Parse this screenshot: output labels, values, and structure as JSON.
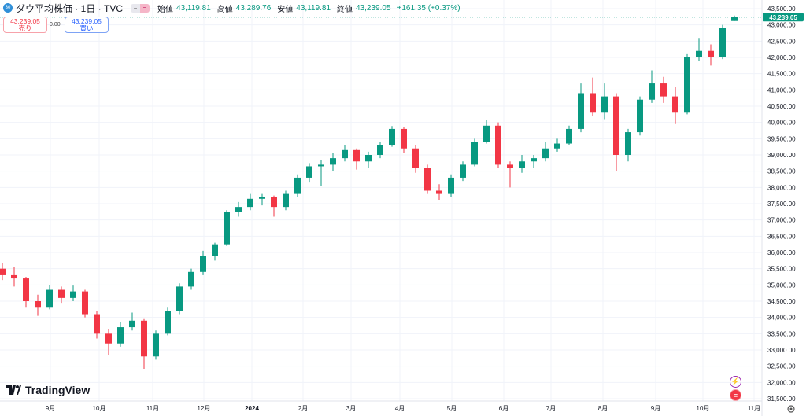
{
  "header": {
    "symbol_badge": "30",
    "title": "ダウ平均株価 · 1日 · TVC",
    "open_label": "始値",
    "open": "43,119.81",
    "high_label": "高値",
    "high": "43,289.76",
    "low_label": "安値",
    "low": "43,119.81",
    "close_label": "終値",
    "close": "43,239.05",
    "change": "+161.35 (+0.37%)"
  },
  "trade": {
    "sell_price": "43,239.05",
    "sell_label": "売り",
    "spread": "0.00",
    "buy_price": "43,239.05",
    "buy_label": "買い"
  },
  "logo": "TradingView",
  "last_price_label": "43,239.05",
  "colors": {
    "up": "#089981",
    "down": "#f23645",
    "grid": "#f0f3fa",
    "last_price": "#089981"
  },
  "icons": [
    "lightning-icon",
    "us-flag-icon",
    "gear-icon"
  ],
  "chart_data": {
    "type": "candlestick",
    "ylim": [
      31500,
      43500
    ],
    "grid": true,
    "y_ticks": [
      "43,500.00",
      "43,000.00",
      "42,500.00",
      "42,000.00",
      "41,500.00",
      "41,000.00",
      "40,500.00",
      "40,000.00",
      "39,500.00",
      "39,000.00",
      "38,500.00",
      "38,000.00",
      "37,500.00",
      "37,000.00",
      "36,500.00",
      "36,000.00",
      "35,500.00",
      "35,000.00",
      "34,500.00",
      "34,000.00",
      "33,500.00",
      "33,000.00",
      "32,500.00",
      "32,000.00",
      "31,500.00"
    ],
    "x_ticks": [
      "9月",
      "10月",
      "11月",
      "12月",
      "2024",
      "2月",
      "3月",
      "4月",
      "5月",
      "6月",
      "7月",
      "8月",
      "9月",
      "10月",
      "11月"
    ],
    "ohlc": [
      [
        35500,
        35680,
        35150,
        35300
      ],
      [
        35300,
        35550,
        34950,
        35200
      ],
      [
        35200,
        35250,
        34300,
        34500
      ],
      [
        34500,
        34700,
        34050,
        34300
      ],
      [
        34300,
        35000,
        34250,
        34850
      ],
      [
        34850,
        34950,
        34450,
        34600
      ],
      [
        34600,
        34980,
        34500,
        34800
      ],
      [
        34800,
        34850,
        34000,
        34100
      ],
      [
        34100,
        34200,
        33350,
        33500
      ],
      [
        33500,
        33650,
        32850,
        33200
      ],
      [
        33200,
        33850,
        33100,
        33700
      ],
      [
        33700,
        34150,
        33600,
        33900
      ],
      [
        33900,
        33950,
        32420,
        32800
      ],
      [
        32800,
        33600,
        32700,
        33500
      ],
      [
        33500,
        34300,
        33450,
        34200
      ],
      [
        34200,
        35050,
        34100,
        34950
      ],
      [
        34950,
        35500,
        34850,
        35400
      ],
      [
        35400,
        36050,
        35300,
        35900
      ],
      [
        35900,
        36300,
        35750,
        36250
      ],
      [
        36250,
        37300,
        36200,
        37250
      ],
      [
        37250,
        37550,
        37100,
        37400
      ],
      [
        37400,
        37800,
        37300,
        37650
      ],
      [
        37650,
        37800,
        37450,
        37700
      ],
      [
        37700,
        37750,
        37100,
        37400
      ],
      [
        37400,
        37900,
        37300,
        37800
      ],
      [
        37800,
        38400,
        37700,
        38300
      ],
      [
        38300,
        38750,
        38150,
        38650
      ],
      [
        38650,
        38850,
        38050,
        38700
      ],
      [
        38700,
        39050,
        38500,
        38900
      ],
      [
        38900,
        39300,
        38800,
        39150
      ],
      [
        39150,
        39200,
        38550,
        38800
      ],
      [
        38800,
        39100,
        38600,
        39000
      ],
      [
        39000,
        39400,
        38900,
        39300
      ],
      [
        39300,
        39890,
        39250,
        39800
      ],
      [
        39800,
        39850,
        39050,
        39200
      ],
      [
        39200,
        39300,
        38450,
        38600
      ],
      [
        38600,
        38700,
        37800,
        37900
      ],
      [
        37900,
        38100,
        37620,
        37800
      ],
      [
        37800,
        38400,
        37700,
        38300
      ],
      [
        38300,
        38800,
        38200,
        38700
      ],
      [
        38700,
        39500,
        38650,
        39400
      ],
      [
        39400,
        40080,
        39350,
        39900
      ],
      [
        39900,
        40000,
        38600,
        38700
      ],
      [
        38700,
        38800,
        38000,
        38600
      ],
      [
        38600,
        39000,
        38450,
        38800
      ],
      [
        38800,
        39000,
        38600,
        38900
      ],
      [
        38900,
        39400,
        38800,
        39200
      ],
      [
        39200,
        39500,
        39100,
        39350
      ],
      [
        39350,
        39900,
        39300,
        39800
      ],
      [
        39800,
        41200,
        39700,
        40900
      ],
      [
        40900,
        41380,
        40200,
        40300
      ],
      [
        40300,
        41200,
        40100,
        40800
      ],
      [
        40800,
        40900,
        38500,
        39000
      ],
      [
        39000,
        39800,
        38800,
        39700
      ],
      [
        39700,
        40800,
        39600,
        40700
      ],
      [
        40700,
        41600,
        40600,
        41200
      ],
      [
        41200,
        41400,
        40600,
        40800
      ],
      [
        40800,
        41100,
        39950,
        40300
      ],
      [
        40300,
        42100,
        40250,
        42000
      ],
      [
        42000,
        42600,
        41900,
        42200
      ],
      [
        42200,
        42400,
        41750,
        42000
      ],
      [
        42000,
        43000,
        41950,
        42900
      ],
      [
        43119.81,
        43289.76,
        43119.81,
        43239.05
      ]
    ],
    "last_price": 43239.05
  }
}
